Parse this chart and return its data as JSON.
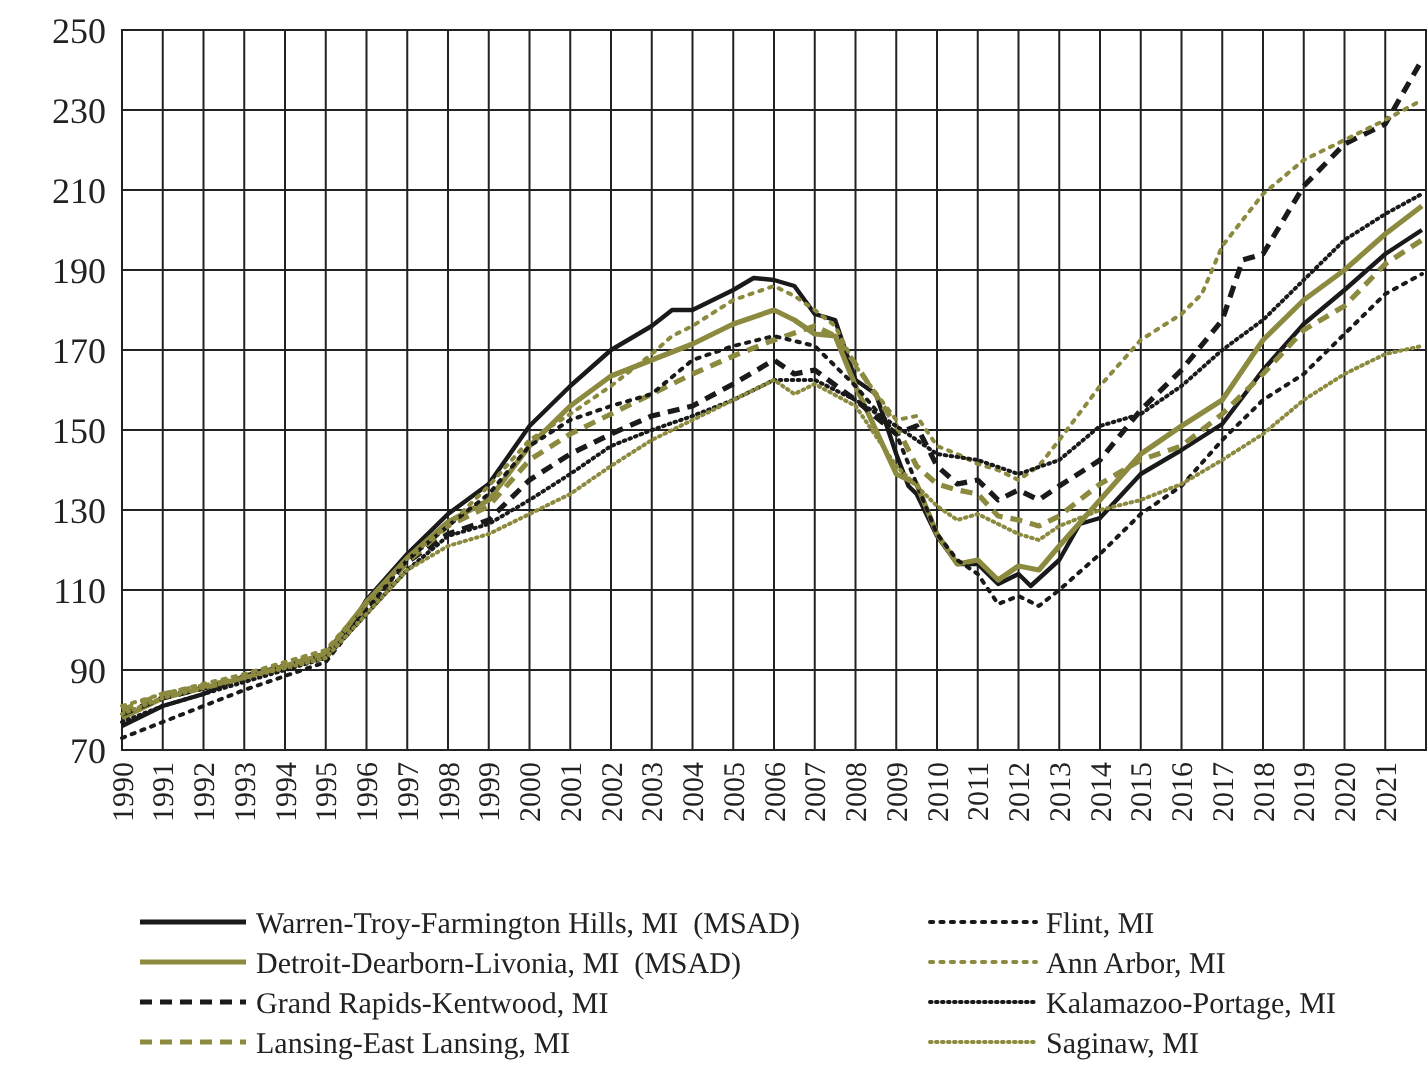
{
  "chart_data": {
    "type": "line",
    "xlim": [
      1990,
      2022
    ],
    "xticks": [
      1990,
      1991,
      1992,
      1993,
      1994,
      1995,
      1996,
      1997,
      1998,
      1999,
      2000,
      2001,
      2002,
      2003,
      2004,
      2005,
      2006,
      2007,
      2008,
      2009,
      2010,
      2011,
      2012,
      2013,
      2014,
      2015,
      2016,
      2017,
      2018,
      2019,
      2020,
      2021
    ],
    "ylim": [
      70,
      250
    ],
    "yticks": [
      70,
      90,
      110,
      130,
      150,
      170,
      190,
      210,
      230,
      250
    ],
    "grid": true,
    "legend": "bottom",
    "series": [
      {
        "name": "Warren-Troy-Farmington Hills, MI  (MSAD)",
        "color": "#1a1a1a",
        "line_style": "solid",
        "x": [
          1990,
          1991,
          1992,
          1993,
          1994,
          1995,
          1995.5,
          1996,
          1997,
          1998,
          1999,
          2000,
          2001,
          2002,
          2003,
          2003.5,
          2004,
          2005,
          2005.5,
          2006,
          2006.5,
          2007,
          2007.5,
          2008,
          2008.5,
          2009,
          2009.3,
          2009.5,
          2010,
          2010.5,
          2011,
          2011.5,
          2012,
          2012.3,
          2013,
          2013.5,
          2014,
          2015,
          2016,
          2017,
          2018,
          2019,
          2020,
          2021,
          2021.9
        ],
        "values": [
          76,
          81,
          84,
          88.5,
          91,
          94,
          99,
          107.5,
          119,
          129,
          136.5,
          151,
          161,
          170,
          176,
          180,
          180,
          185,
          188,
          187.5,
          186,
          179,
          177.5,
          162.5,
          159,
          144,
          136,
          134,
          123.5,
          116.5,
          116.5,
          111.5,
          114,
          111,
          117.5,
          126.5,
          128,
          139,
          145,
          151.5,
          165,
          176.5,
          185,
          194,
          200
        ]
      },
      {
        "name": "Detroit-Dearborn-Livonia, MI  (MSAD)",
        "color": "#8b8a3f",
        "line_style": "solid",
        "x": [
          1990,
          1991,
          1993,
          1995,
          1996,
          1997,
          1998,
          1999,
          2000,
          2001,
          2002,
          2003,
          2004,
          2005,
          2006,
          2006.5,
          2007,
          2007.5,
          2008,
          2009,
          2009.5,
          2010,
          2010.5,
          2011,
          2011.5,
          2012,
          2012.5,
          2013,
          2014,
          2015,
          2016,
          2017,
          2018,
          2019,
          2020,
          2021,
          2021.9
        ],
        "values": [
          78,
          83,
          88,
          94,
          107,
          118,
          127,
          132.5,
          146,
          156,
          163.5,
          167.5,
          171.5,
          176.5,
          180,
          177.5,
          174,
          173.5,
          161,
          139,
          136.5,
          124,
          116.5,
          117.5,
          112.5,
          116,
          115,
          121,
          132.5,
          144,
          151,
          157.5,
          172.5,
          182.5,
          190,
          199,
          206
        ]
      },
      {
        "name": "Grand Rapids-Kentwood, MI",
        "color": "#1a1a1a",
        "line_style": "dashed",
        "x": [
          1990,
          1991,
          1993,
          1995,
          1997,
          1998,
          1999,
          2000,
          2001,
          2002,
          2003,
          2004,
          2005,
          2006,
          2006.5,
          2007,
          2008,
          2009,
          2009.5,
          2010,
          2010.5,
          2011,
          2011.5,
          2012,
          2012.5,
          2013,
          2014,
          2015,
          2016,
          2017,
          2017.5,
          2018,
          2019,
          2020,
          2021,
          2021.9
        ],
        "values": [
          79,
          83,
          88,
          94,
          117,
          124,
          127.5,
          137.5,
          144,
          149,
          153.5,
          156,
          161.5,
          167.5,
          164,
          165,
          157.5,
          149,
          151,
          141,
          136.5,
          137.5,
          132.5,
          135,
          132.5,
          136,
          142.5,
          155,
          165,
          177.5,
          192.5,
          194,
          211,
          221.5,
          226.5,
          242.5
        ]
      },
      {
        "name": "Lansing-East Lansing, MI",
        "color": "#8b8a3f",
        "line_style": "dashed",
        "x": [
          1990,
          1991,
          1993,
          1995,
          1997,
          1998,
          1999,
          2000,
          2001,
          2002,
          2003,
          2004,
          2005,
          2006,
          2007,
          2007.5,
          2008,
          2009,
          2009.5,
          2010,
          2010.5,
          2011,
          2011.5,
          2012,
          2012.5,
          2013,
          2014,
          2015,
          2016,
          2017,
          2018,
          2019,
          2020,
          2021,
          2021.9
        ],
        "values": [
          80,
          84,
          88,
          94,
          117,
          126,
          131,
          142.5,
          149,
          154,
          159,
          164,
          168.5,
          172.5,
          176,
          173.5,
          166.5,
          151,
          141,
          136.5,
          135,
          134,
          128.5,
          127.5,
          126,
          128.5,
          136.5,
          142.5,
          146,
          154,
          164,
          175,
          181,
          191.5,
          197.5
        ]
      },
      {
        "name": "Flint, MI",
        "color": "#1a1a1a",
        "line_style": "dotted",
        "x": [
          1990,
          1991,
          1993,
          1995,
          1996,
          1997,
          1998,
          1999,
          2000,
          2001,
          2002,
          2003,
          2004,
          2005,
          2006,
          2007,
          2008,
          2009,
          2010,
          2010.5,
          2011,
          2011.5,
          2012,
          2012.5,
          2013,
          2014,
          2015,
          2016,
          2017,
          2018,
          2019,
          2020,
          2021,
          2021.9
        ],
        "values": [
          73,
          77,
          85,
          92,
          105,
          117.5,
          126,
          134,
          146,
          152.5,
          156,
          159,
          167.5,
          171,
          173.5,
          171,
          161,
          149,
          124,
          117.5,
          114,
          106.5,
          108.5,
          106,
          110,
          119,
          129,
          136,
          147.5,
          157.5,
          164,
          174,
          184,
          189
        ]
      },
      {
        "name": "Ann Arbor, MI",
        "color": "#8b8a3f",
        "line_style": "dotted",
        "x": [
          1990,
          1991,
          1993,
          1995,
          1997,
          1998,
          1999,
          2000,
          2001,
          2002,
          2003,
          2003.5,
          2004,
          2005,
          2006,
          2006.5,
          2007,
          2007.5,
          2008,
          2009,
          2009.5,
          2010,
          2010.5,
          2011,
          2011.5,
          2012,
          2012.5,
          2013,
          2014,
          2015,
          2016,
          2016.5,
          2017,
          2018,
          2019,
          2020,
          2021,
          2021.9
        ],
        "values": [
          81,
          84,
          89,
          95,
          118,
          126,
          136,
          147.5,
          154,
          161,
          169,
          173.5,
          176,
          182.5,
          186,
          183.5,
          180,
          176,
          166,
          152.5,
          153.5,
          146,
          144,
          141.5,
          140,
          137.5,
          141,
          147.5,
          161,
          172.5,
          179,
          184,
          196,
          209,
          217.5,
          222.5,
          227.5,
          232.5
        ]
      },
      {
        "name": "Kalamazoo-Portage, MI",
        "color": "#1a1a1a",
        "line_style": "dotted",
        "x": [
          1990,
          1991,
          1993,
          1995,
          1997,
          1998,
          1999,
          2000,
          2001,
          2002,
          2003,
          2004,
          2005,
          2006,
          2007,
          2008,
          2009,
          2010,
          2011,
          2012,
          2013,
          2014,
          2015,
          2016,
          2017,
          2018,
          2019,
          2020,
          2021,
          2021.9
        ],
        "values": [
          77,
          81,
          87,
          93,
          115,
          123.5,
          126.5,
          132.5,
          139,
          146,
          150,
          153.5,
          157.5,
          162.5,
          162.5,
          157.5,
          151,
          144,
          142.5,
          139,
          142.5,
          151,
          154,
          161,
          170,
          177.5,
          187.5,
          197.5,
          204,
          209
        ]
      },
      {
        "name": "Saginaw, MI",
        "color": "#8b8a3f",
        "line_style": "dotted",
        "x": [
          1990,
          1991,
          1993,
          1995,
          1997,
          1998,
          1999,
          2000,
          2001,
          2002,
          2003,
          2004,
          2005,
          2006,
          2006.5,
          2007,
          2008,
          2009,
          2010,
          2010.5,
          2011,
          2012,
          2012.5,
          2013,
          2014,
          2015,
          2016,
          2017,
          2018,
          2019,
          2020,
          2021,
          2021.9
        ],
        "values": [
          79,
          83,
          88,
          93,
          115,
          121,
          124,
          129,
          134,
          141,
          147.5,
          152.5,
          157.5,
          162.5,
          159,
          161.5,
          156,
          141,
          131,
          127.5,
          129,
          124,
          122.5,
          126,
          130,
          132.5,
          136.5,
          142.5,
          149,
          157.5,
          164,
          169,
          171
        ]
      }
    ]
  }
}
